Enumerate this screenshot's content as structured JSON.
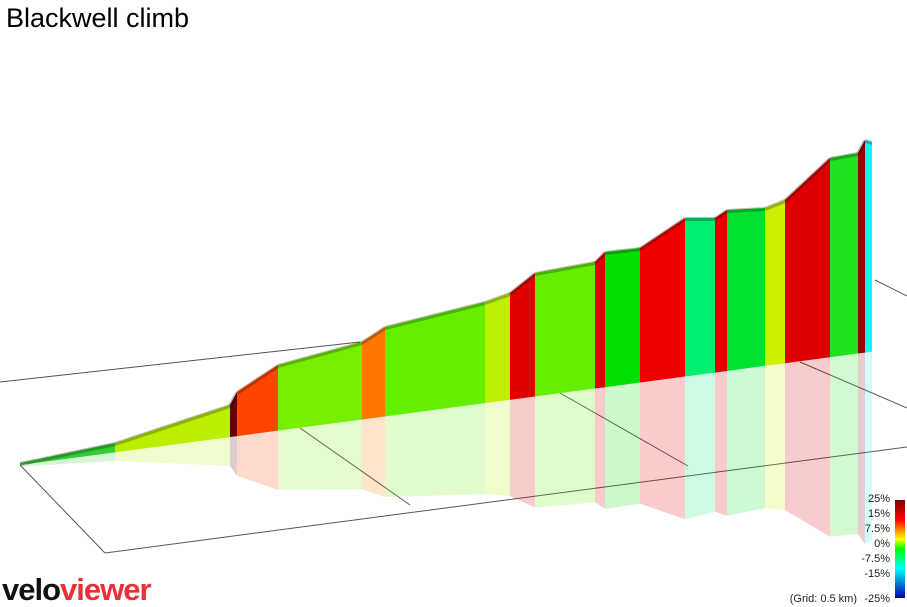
{
  "header": {
    "title": "Blackwell climb"
  },
  "legend": {
    "labels": [
      "25%",
      "15%",
      "7.5%",
      "0%",
      "-7.5%",
      "-15%"
    ],
    "grid_note": "(Grid: 0.5 km)",
    "bottom_label": "-25%"
  },
  "logo": {
    "part1": "velo",
    "part2": "viewer"
  }
}
